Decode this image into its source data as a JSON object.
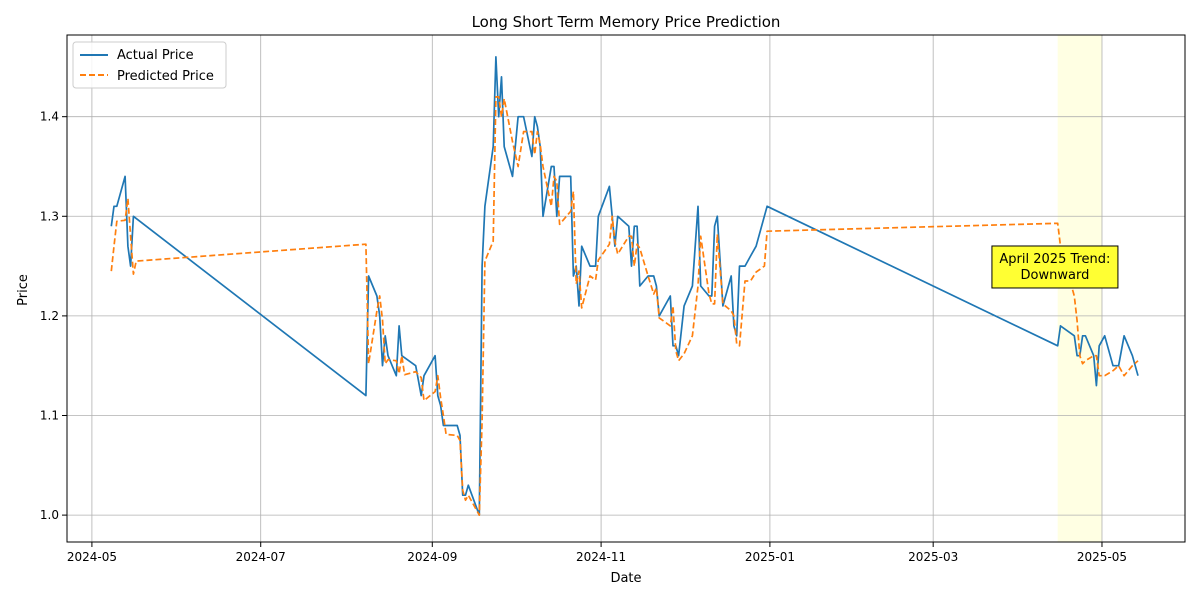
{
  "chart_data": {
    "type": "line",
    "title": "Long Short Term Memory Price Prediction",
    "xlabel": "Date",
    "ylabel": "Price",
    "xlim": [
      "2024-04-22",
      "2025-05-31"
    ],
    "ylim": [
      0.973,
      1.482
    ],
    "grid": true,
    "legend": "top-left",
    "x_ticks": [
      "2024-05",
      "2024-07",
      "2024-09",
      "2024-11",
      "2025-01",
      "2025-03",
      "2025-05"
    ],
    "x_tick_dates": [
      "2024-05-01",
      "2024-07-01",
      "2024-09-01",
      "2024-11-01",
      "2025-01-01",
      "2025-03-01",
      "2025-05-01"
    ],
    "y_ticks": [
      "1.0",
      "1.1",
      "1.2",
      "1.3",
      "1.4"
    ],
    "y_tick_values": [
      1.0,
      1.1,
      1.2,
      1.3,
      1.4
    ],
    "shaded_region": {
      "start": "2025-04-15",
      "end": "2025-05-01",
      "color": "#ffffe0"
    },
    "annotation": {
      "lines": [
        "April 2025 Trend:",
        "Downward"
      ],
      "x": "2025-04-14",
      "y": 1.224,
      "bg": "#ffff33"
    },
    "series": [
      {
        "name": "Actual Price",
        "color": "#1f77b4",
        "style": "solid",
        "points": [
          [
            "2024-05-08",
            1.29
          ],
          [
            "2024-05-09",
            1.31
          ],
          [
            "2024-05-10",
            1.31
          ],
          [
            "2024-05-13",
            1.34
          ],
          [
            "2024-05-14",
            1.27
          ],
          [
            "2024-05-15",
            1.25
          ],
          [
            "2024-05-16",
            1.3
          ],
          [
            "2024-08-08",
            1.12
          ],
          [
            "2024-08-09",
            1.24
          ],
          [
            "2024-08-12",
            1.22
          ],
          [
            "2024-08-13",
            1.2
          ],
          [
            "2024-08-14",
            1.15
          ],
          [
            "2024-08-15",
            1.18
          ],
          [
            "2024-08-16",
            1.16
          ],
          [
            "2024-08-19",
            1.14
          ],
          [
            "2024-08-20",
            1.19
          ],
          [
            "2024-08-21",
            1.16
          ],
          [
            "2024-08-26",
            1.15
          ],
          [
            "2024-08-28",
            1.12
          ],
          [
            "2024-08-29",
            1.14
          ],
          [
            "2024-09-02",
            1.16
          ],
          [
            "2024-09-03",
            1.12
          ],
          [
            "2024-09-04",
            1.11
          ],
          [
            "2024-09-05",
            1.09
          ],
          [
            "2024-09-10",
            1.09
          ],
          [
            "2024-09-11",
            1.08
          ],
          [
            "2024-09-12",
            1.02
          ],
          [
            "2024-09-13",
            1.02
          ],
          [
            "2024-09-14",
            1.03
          ],
          [
            "2024-09-18",
            1.0
          ],
          [
            "2024-09-19",
            1.25
          ],
          [
            "2024-09-20",
            1.31
          ],
          [
            "2024-09-23",
            1.37
          ],
          [
            "2024-09-24",
            1.46
          ],
          [
            "2024-09-25",
            1.4
          ],
          [
            "2024-09-26",
            1.44
          ],
          [
            "2024-09-27",
            1.37
          ],
          [
            "2024-09-30",
            1.34
          ],
          [
            "2024-10-02",
            1.4
          ],
          [
            "2024-10-04",
            1.4
          ],
          [
            "2024-10-07",
            1.36
          ],
          [
            "2024-10-08",
            1.4
          ],
          [
            "2024-10-09",
            1.39
          ],
          [
            "2024-10-10",
            1.37
          ],
          [
            "2024-10-11",
            1.3
          ],
          [
            "2024-10-14",
            1.35
          ],
          [
            "2024-10-15",
            1.35
          ],
          [
            "2024-10-16",
            1.3
          ],
          [
            "2024-10-17",
            1.34
          ],
          [
            "2024-10-21",
            1.34
          ],
          [
            "2024-10-22",
            1.24
          ],
          [
            "2024-10-23",
            1.25
          ],
          [
            "2024-10-24",
            1.21
          ],
          [
            "2024-10-25",
            1.27
          ],
          [
            "2024-10-28",
            1.25
          ],
          [
            "2024-10-30",
            1.25
          ],
          [
            "2024-10-31",
            1.3
          ],
          [
            "2024-11-04",
            1.33
          ],
          [
            "2024-11-05",
            1.3
          ],
          [
            "2024-11-06",
            1.27
          ],
          [
            "2024-11-07",
            1.3
          ],
          [
            "2024-11-11",
            1.29
          ],
          [
            "2024-11-12",
            1.25
          ],
          [
            "2024-11-13",
            1.29
          ],
          [
            "2024-11-14",
            1.29
          ],
          [
            "2024-11-15",
            1.23
          ],
          [
            "2024-11-18",
            1.24
          ],
          [
            "2024-11-20",
            1.24
          ],
          [
            "2024-11-21",
            1.23
          ],
          [
            "2024-11-22",
            1.2
          ],
          [
            "2024-11-26",
            1.22
          ],
          [
            "2024-11-27",
            1.17
          ],
          [
            "2024-11-28",
            1.17
          ],
          [
            "2024-11-29",
            1.16
          ],
          [
            "2024-12-01",
            1.21
          ],
          [
            "2024-12-04",
            1.23
          ],
          [
            "2024-12-06",
            1.31
          ],
          [
            "2024-12-07",
            1.23
          ],
          [
            "2024-12-10",
            1.22
          ],
          [
            "2024-12-11",
            1.22
          ],
          [
            "2024-12-12",
            1.29
          ],
          [
            "2024-12-13",
            1.3
          ],
          [
            "2024-12-15",
            1.21
          ],
          [
            "2024-12-18",
            1.24
          ],
          [
            "2024-12-19",
            1.19
          ],
          [
            "2024-12-20",
            1.18
          ],
          [
            "2024-12-21",
            1.25
          ],
          [
            "2024-12-23",
            1.25
          ],
          [
            "2024-12-25",
            1.26
          ],
          [
            "2024-12-27",
            1.27
          ],
          [
            "2024-12-31",
            1.31
          ],
          [
            "2025-04-15",
            1.17
          ],
          [
            "2025-04-16",
            1.19
          ],
          [
            "2025-04-21",
            1.18
          ],
          [
            "2025-04-22",
            1.16
          ],
          [
            "2025-04-23",
            1.16
          ],
          [
            "2025-04-24",
            1.18
          ],
          [
            "2025-04-25",
            1.18
          ],
          [
            "2025-04-28",
            1.16
          ],
          [
            "2025-04-29",
            1.13
          ],
          [
            "2025-04-30",
            1.17
          ],
          [
            "2025-05-02",
            1.18
          ],
          [
            "2025-05-05",
            1.15
          ],
          [
            "2025-05-07",
            1.15
          ],
          [
            "2025-05-09",
            1.18
          ],
          [
            "2025-05-12",
            1.16
          ],
          [
            "2025-05-14",
            1.14
          ]
        ]
      },
      {
        "name": "Predicted Price",
        "color": "#ff7f0e",
        "style": "dashed",
        "points": [
          [
            "2024-05-08",
            1.245
          ],
          [
            "2024-05-09",
            1.27
          ],
          [
            "2024-05-10",
            1.295
          ],
          [
            "2024-05-13",
            1.296
          ],
          [
            "2024-05-14",
            1.318
          ],
          [
            "2024-05-15",
            1.28
          ],
          [
            "2024-05-16",
            1.242
          ],
          [
            "2024-05-17",
            1.255
          ],
          [
            "2024-08-08",
            1.272
          ],
          [
            "2024-08-09",
            1.152
          ],
          [
            "2024-08-12",
            1.205
          ],
          [
            "2024-08-13",
            1.22
          ],
          [
            "2024-08-14",
            1.196
          ],
          [
            "2024-08-15",
            1.152
          ],
          [
            "2024-08-16",
            1.156
          ],
          [
            "2024-08-19",
            1.155
          ],
          [
            "2024-08-20",
            1.142
          ],
          [
            "2024-08-21",
            1.16
          ],
          [
            "2024-08-22",
            1.141
          ],
          [
            "2024-08-26",
            1.144
          ],
          [
            "2024-08-28",
            1.138
          ],
          [
            "2024-08-29",
            1.115
          ],
          [
            "2024-09-02",
            1.124
          ],
          [
            "2024-09-03",
            1.14
          ],
          [
            "2024-09-04",
            1.118
          ],
          [
            "2024-09-05",
            1.1
          ],
          [
            "2024-09-06",
            1.081
          ],
          [
            "2024-09-10",
            1.08
          ],
          [
            "2024-09-11",
            1.075
          ],
          [
            "2024-09-12",
            1.025
          ],
          [
            "2024-09-13",
            1.015
          ],
          [
            "2024-09-14",
            1.02
          ],
          [
            "2024-09-18",
            1.0
          ],
          [
            "2024-09-19",
            1.095
          ],
          [
            "2024-09-20",
            1.255
          ],
          [
            "2024-09-23",
            1.275
          ],
          [
            "2024-09-24",
            1.42
          ],
          [
            "2024-09-25",
            1.42
          ],
          [
            "2024-09-26",
            1.4
          ],
          [
            "2024-09-27",
            1.418
          ],
          [
            "2024-09-30",
            1.375
          ],
          [
            "2024-10-02",
            1.35
          ],
          [
            "2024-10-04",
            1.385
          ],
          [
            "2024-10-07",
            1.385
          ],
          [
            "2024-10-08",
            1.362
          ],
          [
            "2024-10-09",
            1.385
          ],
          [
            "2024-10-10",
            1.372
          ],
          [
            "2024-10-11",
            1.35
          ],
          [
            "2024-10-14",
            1.31
          ],
          [
            "2024-10-15",
            1.34
          ],
          [
            "2024-10-16",
            1.335
          ],
          [
            "2024-10-17",
            1.292
          ],
          [
            "2024-10-21",
            1.305
          ],
          [
            "2024-10-22",
            1.325
          ],
          [
            "2024-10-23",
            1.232
          ],
          [
            "2024-10-24",
            1.245
          ],
          [
            "2024-10-25",
            1.208
          ],
          [
            "2024-10-28",
            1.24
          ],
          [
            "2024-10-30",
            1.236
          ],
          [
            "2024-10-31",
            1.256
          ],
          [
            "2024-11-04",
            1.272
          ],
          [
            "2024-11-05",
            1.3
          ],
          [
            "2024-11-06",
            1.275
          ],
          [
            "2024-11-07",
            1.262
          ],
          [
            "2024-11-11",
            1.28
          ],
          [
            "2024-11-12",
            1.28
          ],
          [
            "2024-11-13",
            1.25
          ],
          [
            "2024-11-14",
            1.272
          ],
          [
            "2024-11-15",
            1.268
          ],
          [
            "2024-11-18",
            1.24
          ],
          [
            "2024-11-20",
            1.222
          ],
          [
            "2024-11-21",
            1.228
          ],
          [
            "2024-11-22",
            1.198
          ],
          [
            "2024-11-26",
            1.19
          ],
          [
            "2024-11-27",
            1.21
          ],
          [
            "2024-11-28",
            1.165
          ],
          [
            "2024-11-29",
            1.155
          ],
          [
            "2024-12-01",
            1.162
          ],
          [
            "2024-12-04",
            1.18
          ],
          [
            "2024-12-06",
            1.23
          ],
          [
            "2024-12-07",
            1.28
          ],
          [
            "2024-12-10",
            1.222
          ],
          [
            "2024-12-11",
            1.212
          ],
          [
            "2024-12-12",
            1.212
          ],
          [
            "2024-12-13",
            1.282
          ],
          [
            "2024-12-15",
            1.212
          ],
          [
            "2024-12-18",
            1.205
          ],
          [
            "2024-12-19",
            1.2
          ],
          [
            "2024-12-20",
            1.172
          ],
          [
            "2024-12-21",
            1.17
          ],
          [
            "2024-12-23",
            1.235
          ],
          [
            "2024-12-25",
            1.235
          ],
          [
            "2024-12-27",
            1.244
          ],
          [
            "2024-12-30",
            1.25
          ],
          [
            "2024-12-31",
            1.285
          ],
          [
            "2025-04-15",
            1.293
          ],
          [
            "2025-04-16",
            1.27
          ],
          [
            "2025-04-21",
            1.22
          ],
          [
            "2025-04-22",
            1.195
          ],
          [
            "2025-04-23",
            1.16
          ],
          [
            "2025-04-24",
            1.152
          ],
          [
            "2025-04-25",
            1.155
          ],
          [
            "2025-04-28",
            1.16
          ],
          [
            "2025-04-29",
            1.16
          ],
          [
            "2025-04-30",
            1.14
          ],
          [
            "2025-05-02",
            1.14
          ],
          [
            "2025-05-05",
            1.145
          ],
          [
            "2025-05-07",
            1.15
          ],
          [
            "2025-05-09",
            1.14
          ],
          [
            "2025-05-12",
            1.15
          ],
          [
            "2025-05-14",
            1.155
          ]
        ]
      }
    ]
  }
}
